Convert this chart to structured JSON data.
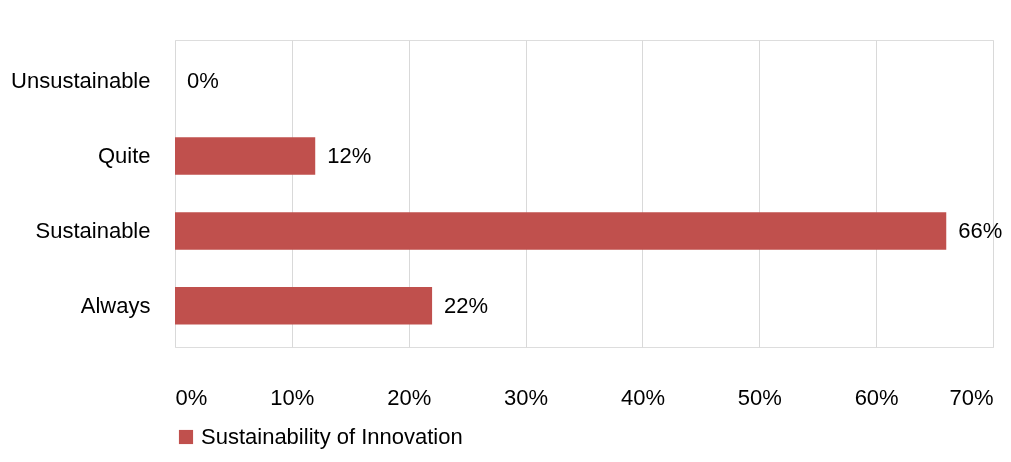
{
  "chart_data": {
    "type": "bar",
    "orientation": "horizontal",
    "categories": [
      "Unsustainable",
      "Quite",
      "Sustainable",
      "Always"
    ],
    "series": [
      {
        "name": "Sustainability of Innovation",
        "color": "#c0504d",
        "values": [
          0,
          12,
          66,
          22
        ],
        "value_labels": [
          "0%",
          "12%",
          "66%",
          "22%"
        ]
      }
    ],
    "xlim": [
      0,
      70
    ],
    "xticks": [
      {
        "value": 0,
        "label": "0%"
      },
      {
        "value": 10,
        "label": "10%"
      },
      {
        "value": 20,
        "label": "20%"
      },
      {
        "value": 30,
        "label": "30%"
      },
      {
        "value": 40,
        "label": "40%"
      },
      {
        "value": 50,
        "label": "50%"
      },
      {
        "value": 60,
        "label": "60%"
      },
      {
        "value": 70,
        "label": "70%"
      }
    ],
    "grid": "x",
    "legend": "bottom"
  }
}
